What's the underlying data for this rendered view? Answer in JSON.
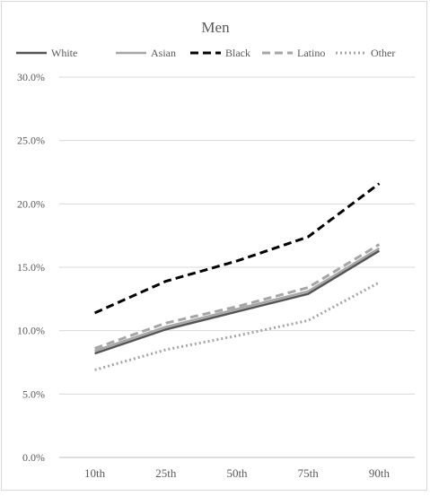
{
  "chart_data": {
    "type": "line",
    "title": "Men",
    "xlabel": "",
    "ylabel": "",
    "categories": [
      "10th",
      "25th",
      "50th",
      "75th",
      "90th"
    ],
    "y_ticks": [
      "0.0%",
      "5.0%",
      "10.0%",
      "15.0%",
      "20.0%",
      "25.0%",
      "30.0%"
    ],
    "ylim": [
      0,
      30
    ],
    "grid": true,
    "legend_position": "top",
    "series": [
      {
        "name": "White",
        "values": [
          8.2,
          10.1,
          11.5,
          12.9,
          16.3
        ],
        "color": "#555555",
        "style": "solid"
      },
      {
        "name": "Asian",
        "values": [
          8.4,
          10.3,
          11.7,
          13.1,
          16.5
        ],
        "color": "#a6a6a6",
        "style": "solid"
      },
      {
        "name": "Black",
        "values": [
          11.4,
          13.9,
          15.5,
          17.4,
          21.6
        ],
        "color": "#000000",
        "style": "dash"
      },
      {
        "name": "Latino",
        "values": [
          8.6,
          10.6,
          11.9,
          13.4,
          16.8
        ],
        "color": "#a6a6a6",
        "style": "dash"
      },
      {
        "name": "Other",
        "values": [
          6.9,
          8.5,
          9.6,
          10.8,
          13.8
        ],
        "color": "#a6a6a6",
        "style": "dot"
      }
    ]
  }
}
